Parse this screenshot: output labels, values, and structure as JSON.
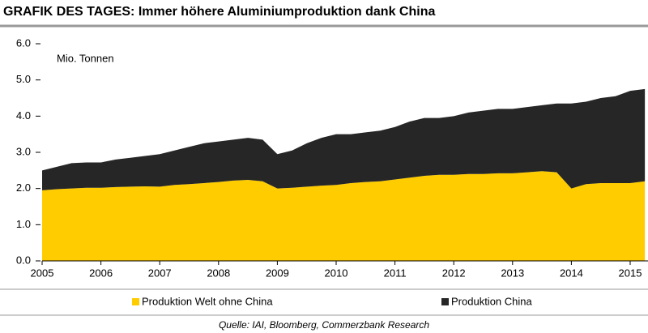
{
  "chart_data": {
    "type": "stacked_area",
    "title": "GRAFIK DES TAGES: Immer höhere Aluminiumproduktion dank China",
    "annotation": "Mio. Tonnen",
    "source": "Quelle: IAI, Bloomberg, Commerzbank Research",
    "x": [
      2005,
      2005.25,
      2005.5,
      2005.75,
      2006,
      2006.25,
      2006.5,
      2006.75,
      2007,
      2007.25,
      2007.5,
      2007.75,
      2008,
      2008.25,
      2008.5,
      2008.75,
      2009,
      2009.25,
      2009.5,
      2009.75,
      2010,
      2010.25,
      2010.5,
      2010.75,
      2011,
      2011.25,
      2011.5,
      2011.75,
      2012,
      2012.25,
      2012.5,
      2012.75,
      2013,
      2013.25,
      2013.5,
      2013.75,
      2014,
      2014.25,
      2014.5,
      2014.75,
      2015,
      2015.25
    ],
    "series": [
      {
        "name": "Produktion Welt ohne China",
        "color": "#ffcc00",
        "values": [
          1.95,
          1.98,
          2.0,
          2.02,
          2.02,
          2.04,
          2.05,
          2.06,
          2.05,
          2.1,
          2.12,
          2.15,
          2.18,
          2.22,
          2.24,
          2.2,
          2.0,
          2.02,
          2.05,
          2.08,
          2.1,
          2.15,
          2.18,
          2.2,
          2.25,
          2.3,
          2.35,
          2.38,
          2.38,
          2.4,
          2.4,
          2.42,
          2.42,
          2.45,
          2.48,
          2.45,
          2.0,
          2.12,
          2.15,
          2.15,
          2.15,
          2.2
        ]
      },
      {
        "name": "Produktion China",
        "color": "#262626",
        "values": [
          0.55,
          0.62,
          0.7,
          0.7,
          0.7,
          0.76,
          0.8,
          0.84,
          0.9,
          0.95,
          1.03,
          1.1,
          1.12,
          1.13,
          1.16,
          1.15,
          0.95,
          1.03,
          1.2,
          1.32,
          1.4,
          1.35,
          1.37,
          1.4,
          1.45,
          1.55,
          1.6,
          1.57,
          1.62,
          1.7,
          1.75,
          1.78,
          1.78,
          1.8,
          1.82,
          1.9,
          2.35,
          2.28,
          2.35,
          2.4,
          2.55,
          2.55
        ]
      }
    ],
    "xlim": [
      2005,
      2015.3
    ],
    "xticks": [
      2005,
      2006,
      2007,
      2008,
      2009,
      2010,
      2011,
      2012,
      2013,
      2014,
      2015
    ],
    "ylim": [
      0,
      6
    ],
    "yticks": [
      {
        "value": 0,
        "label": "0.0"
      },
      {
        "value": 1,
        "label": "1.0"
      },
      {
        "value": 2,
        "label": "2.0"
      },
      {
        "value": 3,
        "label": "3.0"
      },
      {
        "value": 4,
        "label": "4.0"
      },
      {
        "value": 5,
        "label": "5.0"
      },
      {
        "value": 6,
        "label": "6.0"
      }
    ],
    "grid": false,
    "legend": "bottom"
  }
}
